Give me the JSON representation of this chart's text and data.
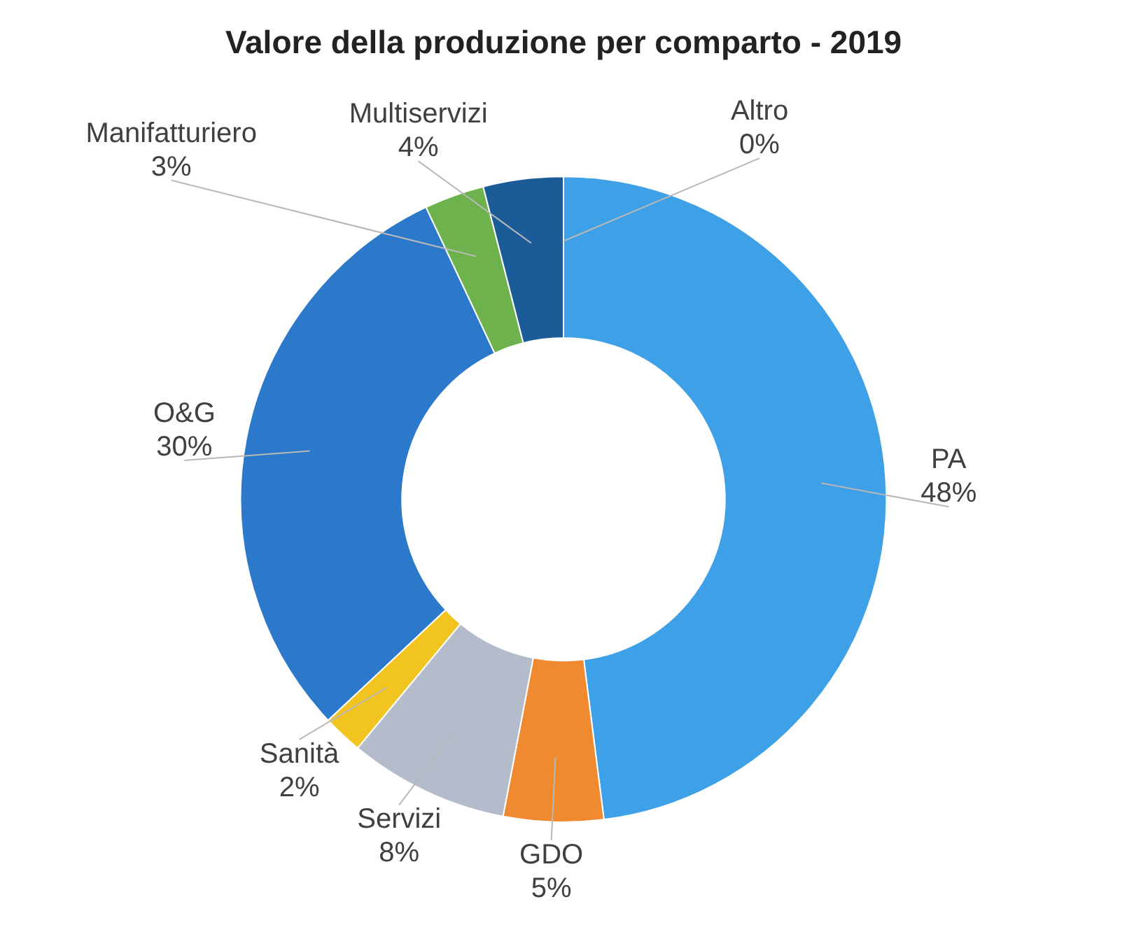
{
  "chart_data": {
    "type": "donut",
    "title": "Valore della produzione per comparto - 2019",
    "categories": [
      "Altro",
      "PA",
      "GDO",
      "Servizi",
      "Sanità",
      "O&G",
      "Manifatturiero",
      "Multiservizi"
    ],
    "values": [
      0,
      48,
      5,
      8,
      2,
      30,
      3,
      4
    ],
    "value_labels": [
      "0%",
      "48%",
      "5%",
      "8%",
      "2%",
      "30%",
      "3%",
      "4%"
    ],
    "colors": [
      "#d9502e",
      "#3ea0e6",
      "#f08a30",
      "#b4bccb",
      "#f2c420",
      "#2c79cc",
      "#6db24c",
      "#1b5c98"
    ],
    "legend": false
  }
}
